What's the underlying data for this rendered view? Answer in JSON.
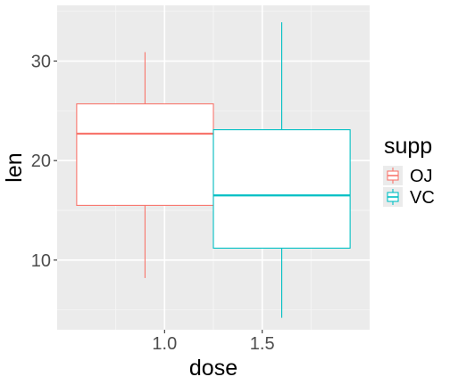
{
  "chart_data": {
    "type": "boxplot",
    "title": "",
    "xlabel": "dose",
    "ylabel": "len",
    "xlim": [
      0.45,
      2.05
    ],
    "ylim": [
      3.0,
      35.6
    ],
    "x_ticks": [
      1.0,
      1.5
    ],
    "x_tick_labels": [
      "1.0",
      "1.5"
    ],
    "x_minor_ticks": [
      0.75,
      1.25,
      1.75
    ],
    "y_ticks": [
      10,
      20,
      30
    ],
    "y_tick_labels": [
      "10",
      "20",
      "30"
    ],
    "y_minor_ticks": [
      5,
      15,
      25,
      35
    ],
    "grid": true,
    "legend": {
      "title": "supp",
      "placement": "right",
      "entries": [
        "OJ",
        "VC"
      ]
    },
    "series": [
      {
        "name": "OJ",
        "color": "#F8766D",
        "x": 0.9,
        "box_left": 0.55,
        "box_right": 1.25,
        "whisker_low": 8.2,
        "q1": 15.5,
        "median": 22.7,
        "q3": 25.7,
        "whisker_high": 30.9
      },
      {
        "name": "VC",
        "color": "#00BFC4",
        "x": 1.6,
        "box_left": 1.25,
        "box_right": 1.95,
        "whisker_low": 4.2,
        "q1": 11.2,
        "median": 16.5,
        "q3": 23.1,
        "whisker_high": 33.9
      }
    ]
  }
}
